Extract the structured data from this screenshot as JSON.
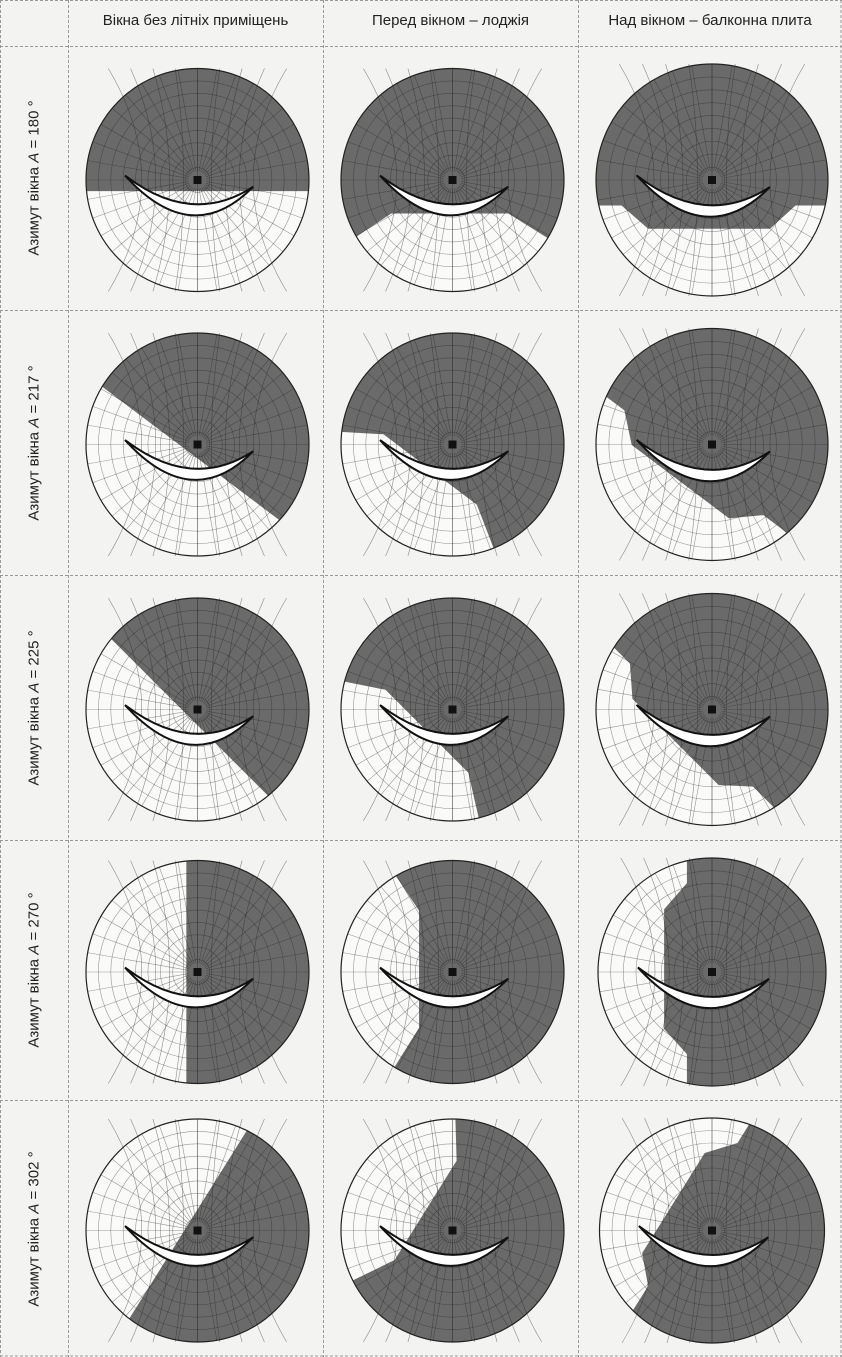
{
  "columns": [
    "Вікна без літніх приміщень",
    "Перед вікном – лоджія",
    "Над вікном – балконна плита"
  ],
  "rows": [
    {
      "label": "Азимут вікна",
      "symbol": "A",
      "value": "= 180 °"
    },
    {
      "label": "Азимут вікна",
      "symbol": "A",
      "value": "= 217 °"
    },
    {
      "label": "Азимут вікна",
      "symbol": "A",
      "value": "= 225 °"
    },
    {
      "label": "Азимут вікна",
      "symbol": "A",
      "value": "= 270 °"
    },
    {
      "label": "Азимут вікна",
      "symbol": "A",
      "value": "= 302 °"
    }
  ]
}
